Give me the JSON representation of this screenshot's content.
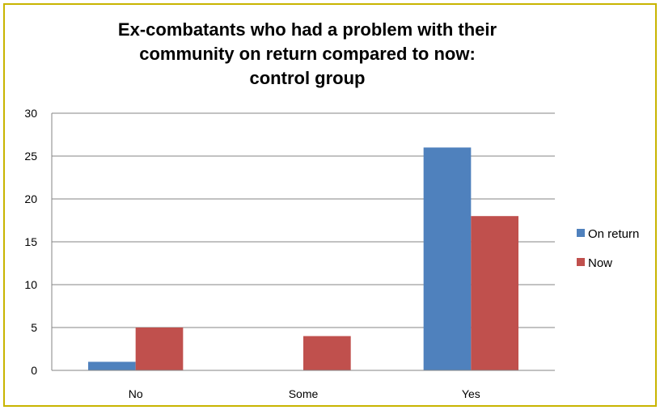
{
  "chart_data": {
    "type": "bar",
    "title": "Ex-combatants who had a problem with their\ncommunity on return compared to now:\ncontrol group",
    "categories": [
      "No",
      "Some",
      "Yes"
    ],
    "series": [
      {
        "name": "On return",
        "values": [
          1,
          0,
          26
        ],
        "color": "#4f81bd"
      },
      {
        "name": "Now",
        "values": [
          5,
          4,
          18
        ],
        "color": "#c0504d"
      }
    ],
    "ylim": [
      0,
      30
    ],
    "yticks": [
      0,
      5,
      10,
      15,
      20,
      25,
      30
    ],
    "grid": true,
    "legend_position": "right",
    "border_color": "#c8b400"
  }
}
